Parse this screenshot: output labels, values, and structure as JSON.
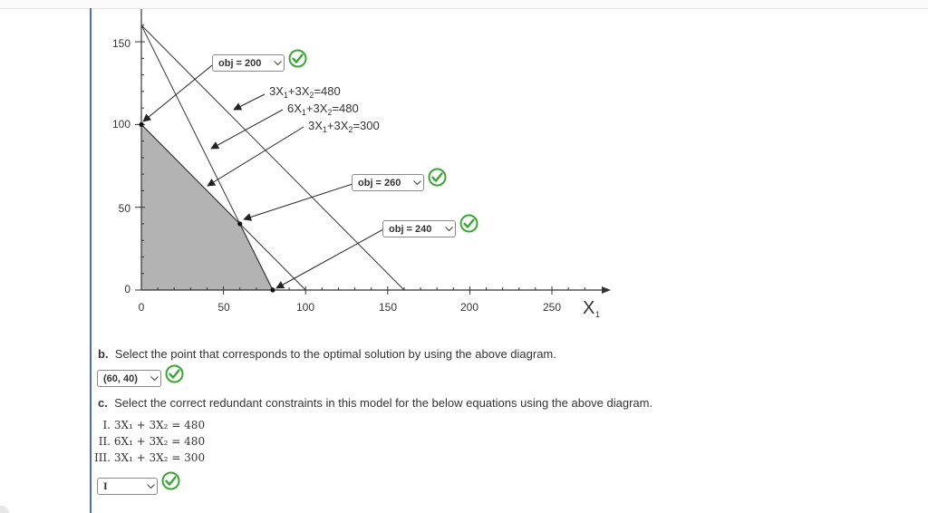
{
  "colors": {
    "accent_rule": "#4a6fb5",
    "feasible_region": "#b3b3b3",
    "check_green": "#3aa535",
    "text": "#333333"
  },
  "diagram": {
    "y_ticks": [
      "150",
      "100",
      "50",
      "0"
    ],
    "x_ticks": [
      "0",
      "50",
      "100",
      "150",
      "200",
      "250"
    ],
    "x_axis_label": "X",
    "x_axis_subscript": "1",
    "constraint_labels": [
      {
        "parts": [
          "3X",
          "1",
          "+3X",
          "2",
          "=480"
        ]
      },
      {
        "parts": [
          "6X",
          "1",
          "+3X",
          "2",
          "=480"
        ]
      },
      {
        "parts": [
          "3X",
          "1",
          "+3X",
          "2",
          "=300"
        ]
      }
    ],
    "dropdowns": [
      {
        "value": "obj = 200",
        "icon": "chevron-down-icon",
        "status_icon": "check-circle-icon"
      },
      {
        "value": "obj = 260",
        "icon": "chevron-down-icon",
        "status_icon": "check-circle-icon"
      },
      {
        "value": "obj = 240",
        "icon": "chevron-down-icon",
        "status_icon": "check-circle-icon"
      }
    ]
  },
  "chart_data": {
    "type": "line",
    "title": "",
    "xlabel": "X1",
    "ylabel": "",
    "xlim": [
      0,
      280
    ],
    "ylim": [
      0,
      160
    ],
    "grid": false,
    "series": [
      {
        "name": "3X1+3X2=480",
        "x": [
          0,
          160
        ],
        "y": [
          160,
          0
        ]
      },
      {
        "name": "6X1+3X2=480",
        "x": [
          0,
          80
        ],
        "y": [
          160,
          0
        ]
      },
      {
        "name": "3X1+3X2=300",
        "x": [
          0,
          100
        ],
        "y": [
          100,
          0
        ]
      }
    ],
    "feasible_region": {
      "x": [
        0,
        0,
        60,
        80
      ],
      "y": [
        0,
        100,
        40,
        0
      ]
    },
    "points": [
      {
        "x": 0,
        "y": 100
      },
      {
        "x": 60,
        "y": 40
      },
      {
        "x": 80,
        "y": 0
      }
    ]
  },
  "question_b": {
    "label": "b.",
    "text": "Select the point that corresponds to the optimal solution by using the above diagram.",
    "answer": "(60, 40)"
  },
  "question_c": {
    "label": "c.",
    "text": "Select the correct redundant constraints in this model for the below equations using the above diagram.",
    "equations": [
      {
        "numeral": "I.",
        "text": "3X₁ + 3X₂ = 480"
      },
      {
        "numeral": "II.",
        "text": "6X₁ + 3X₂ = 480"
      },
      {
        "numeral": "III.",
        "text": "3X₁ + 3X₂ = 300"
      }
    ],
    "answer": "I"
  }
}
